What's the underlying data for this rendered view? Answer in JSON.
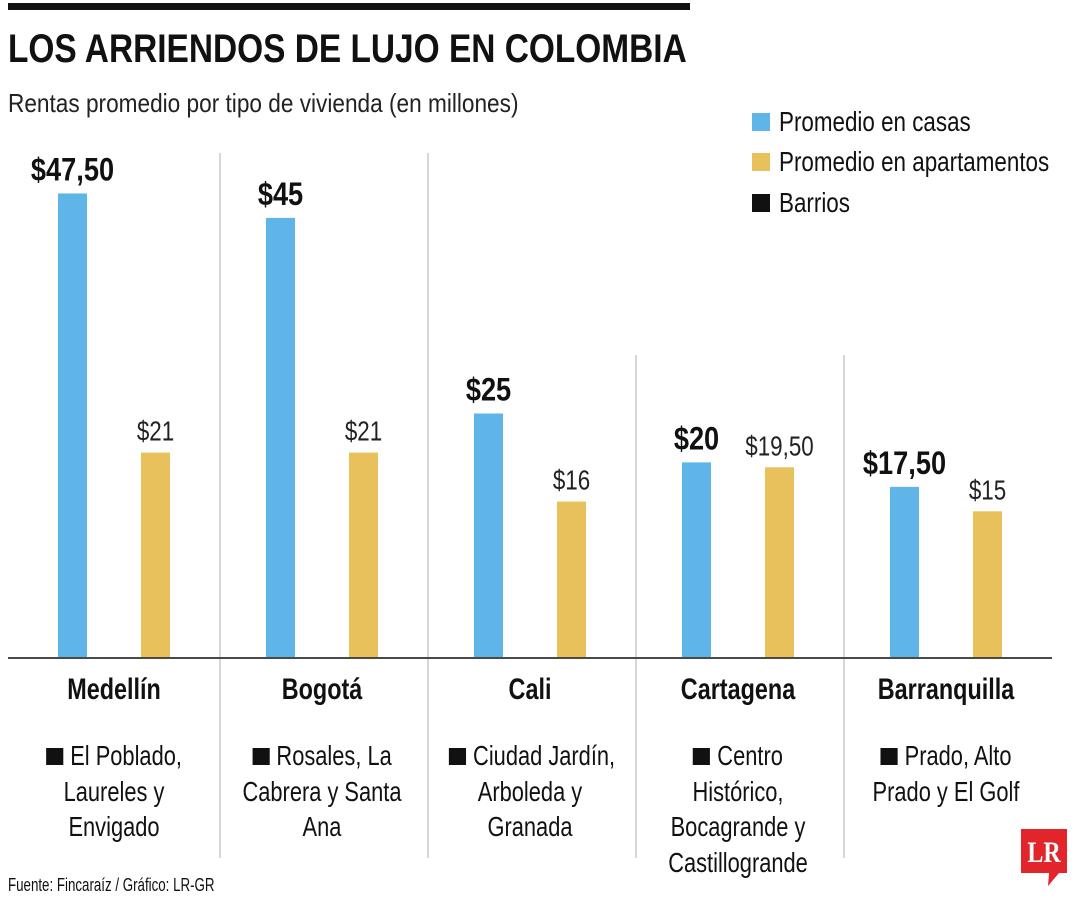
{
  "chart_data": {
    "type": "bar",
    "title": "LOS ARRIENDOS DE LUJO EN COLOMBIA",
    "subtitle": "Rentas promedio por tipo de vivienda (en millones)",
    "categories": [
      "Medellín",
      "Bogotá",
      "Cali",
      "Cartagena",
      "Barranquilla"
    ],
    "series": [
      {
        "name": "Promedio en casas",
        "color": "#5fb5e7",
        "values": [
          47.5,
          45,
          25,
          20,
          17.5
        ],
        "labels": [
          "$47,50",
          "$45",
          "$25",
          "$20",
          "$17,50"
        ]
      },
      {
        "name": "Promedio en apartamentos",
        "color": "#e9c15c",
        "values": [
          21,
          21,
          16,
          19.5,
          15
        ],
        "labels": [
          "$21",
          "$21",
          "$16",
          "$19,50",
          "$15"
        ]
      }
    ],
    "ylim": [
      0,
      50
    ],
    "grid": false,
    "legend": {
      "placement": "top-right",
      "extra_entries": [
        {
          "name": "Barrios",
          "color": "#111111"
        }
      ]
    },
    "barrios": [
      [
        "El Poblado,",
        "Laureles y",
        "Envigado"
      ],
      [
        "Rosales, La",
        "Cabrera y Santa",
        "Ana"
      ],
      [
        "Ciudad Jardín,",
        "Arboleda y",
        "Granada"
      ],
      [
        "Centro",
        "Histórico,",
        "Bocagrande y",
        "Castillogrande"
      ],
      [
        "Prado, Alto",
        "Prado y El Golf"
      ]
    ],
    "barrios_marker": "black-square-icon"
  },
  "source": "Fuente: Fincaraíz / Gráfico: LR-GR",
  "logo": {
    "text": "LR",
    "color": "#e2252b",
    "icon": "lr-logo-icon"
  }
}
